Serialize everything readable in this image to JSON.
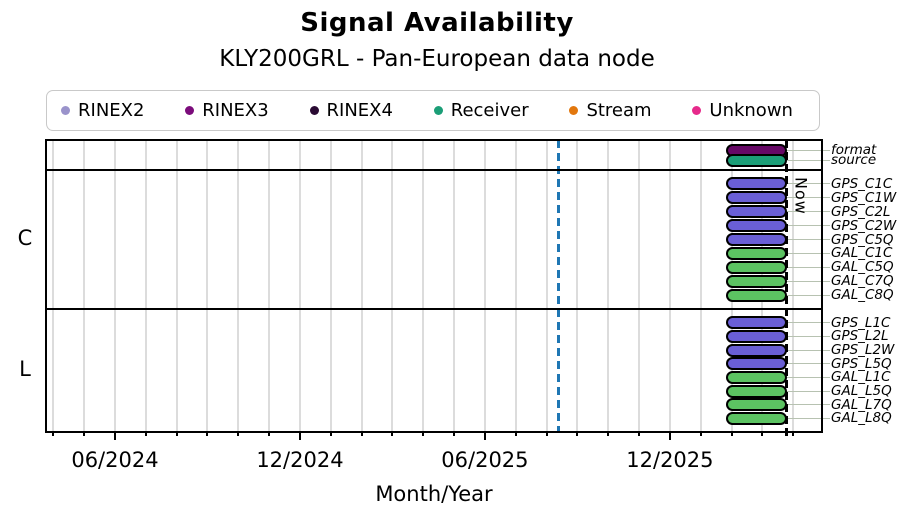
{
  "chart_data": {
    "type": "bar",
    "subtype": "availability-timeline",
    "title": "Signal Availability",
    "subtitle": "KLY200GRL - Pan-European data node",
    "xlabel": "Month/Year",
    "x_axis": {
      "range": {
        "start": "2024-03-24",
        "end": "2026-04-28"
      },
      "major_ticks": [
        {
          "date": "2024-06-01",
          "label": "06/2024"
        },
        {
          "date": "2024-12-01",
          "label": "12/2024"
        },
        {
          "date": "2025-06-01",
          "label": "06/2025"
        },
        {
          "date": "2025-12-01",
          "label": "12/2025"
        }
      ],
      "minor_tick_every": "1 month",
      "grid": "vertical, monthly"
    },
    "legend": {
      "position": "top",
      "entries": [
        {
          "label": "RINEX2",
          "color": "#9A93CB"
        },
        {
          "label": "RINEX3",
          "color": "#7B0C7B"
        },
        {
          "label": "RINEX4",
          "color": "#2A0A33"
        },
        {
          "label": "Receiver",
          "color": "#1B9E77"
        },
        {
          "label": "Stream",
          "color": "#E2770D"
        },
        {
          "label": "Unknown",
          "color": "#E62A8B"
        }
      ]
    },
    "now_marker": {
      "date": "2026-03-25",
      "label": "Now",
      "color": "#000000",
      "style": "dashed"
    },
    "reference_line": {
      "date": "2025-08-13",
      "color": "#1F77B4",
      "style": "dashed"
    },
    "colors": {
      "gps_bar": "#6A5FD6",
      "gal_bar": "#5CC362",
      "format_bar": "#660866",
      "source_bar": "#1B9E77",
      "grid": "#DCDCDC",
      "leader": "#B7C2B1"
    },
    "row_groups": [
      {
        "label": "",
        "rows": [
          {
            "label": "format",
            "color": "#660866",
            "bars": [
              {
                "start": "2026-01-26",
                "end": "2026-03-25"
              }
            ]
          },
          {
            "label": "source",
            "color": "#1B9E77",
            "bars": [
              {
                "start": "2026-01-26",
                "end": "2026-03-25"
              }
            ]
          }
        ]
      },
      {
        "label": "C",
        "rows": [
          {
            "label": "GPS_C1C",
            "color": "#6A5FD6",
            "bars": [
              {
                "start": "2026-01-26",
                "end": "2026-03-25"
              }
            ]
          },
          {
            "label": "GPS_C1W",
            "color": "#6A5FD6",
            "bars": [
              {
                "start": "2026-01-26",
                "end": "2026-03-25"
              }
            ]
          },
          {
            "label": "GPS_C2L",
            "color": "#6A5FD6",
            "bars": [
              {
                "start": "2026-01-26",
                "end": "2026-03-25"
              }
            ]
          },
          {
            "label": "GPS_C2W",
            "color": "#6A5FD6",
            "bars": [
              {
                "start": "2026-01-26",
                "end": "2026-03-25"
              }
            ]
          },
          {
            "label": "GPS_C5Q",
            "color": "#6A5FD6",
            "bars": [
              {
                "start": "2026-01-26",
                "end": "2026-03-25"
              }
            ]
          },
          {
            "label": "GAL_C1C",
            "color": "#5CC362",
            "bars": [
              {
                "start": "2026-01-26",
                "end": "2026-03-25"
              }
            ]
          },
          {
            "label": "GAL_C5Q",
            "color": "#5CC362",
            "bars": [
              {
                "start": "2026-01-26",
                "end": "2026-03-25"
              }
            ]
          },
          {
            "label": "GAL_C7Q",
            "color": "#5CC362",
            "bars": [
              {
                "start": "2026-01-26",
                "end": "2026-03-25"
              }
            ]
          },
          {
            "label": "GAL_C8Q",
            "color": "#5CC362",
            "bars": [
              {
                "start": "2026-01-26",
                "end": "2026-03-25"
              }
            ]
          }
        ]
      },
      {
        "label": "L",
        "rows": [
          {
            "label": "GPS_L1C",
            "color": "#6A5FD6",
            "bars": [
              {
                "start": "2026-01-26",
                "end": "2026-03-25"
              }
            ]
          },
          {
            "label": "GPS_L2L",
            "color": "#6A5FD6",
            "bars": [
              {
                "start": "2026-01-26",
                "end": "2026-03-25"
              }
            ]
          },
          {
            "label": "GPS_L2W",
            "color": "#6A5FD6",
            "bars": [
              {
                "start": "2026-01-26",
                "end": "2026-03-25"
              }
            ]
          },
          {
            "label": "GPS_L5Q",
            "color": "#6A5FD6",
            "bars": [
              {
                "start": "2026-01-26",
                "end": "2026-03-25"
              }
            ]
          },
          {
            "label": "GAL_L1C",
            "color": "#5CC362",
            "bars": [
              {
                "start": "2026-01-26",
                "end": "2026-03-25"
              }
            ]
          },
          {
            "label": "GAL_L5Q",
            "color": "#5CC362",
            "bars": [
              {
                "start": "2026-01-26",
                "end": "2026-03-25"
              }
            ]
          },
          {
            "label": "GAL_L7Q",
            "color": "#5CC362",
            "bars": [
              {
                "start": "2026-01-26",
                "end": "2026-03-25"
              }
            ]
          },
          {
            "label": "GAL_L8Q",
            "color": "#5CC362",
            "bars": [
              {
                "start": "2026-01-26",
                "end": "2026-03-25"
              }
            ]
          }
        ]
      }
    ]
  }
}
